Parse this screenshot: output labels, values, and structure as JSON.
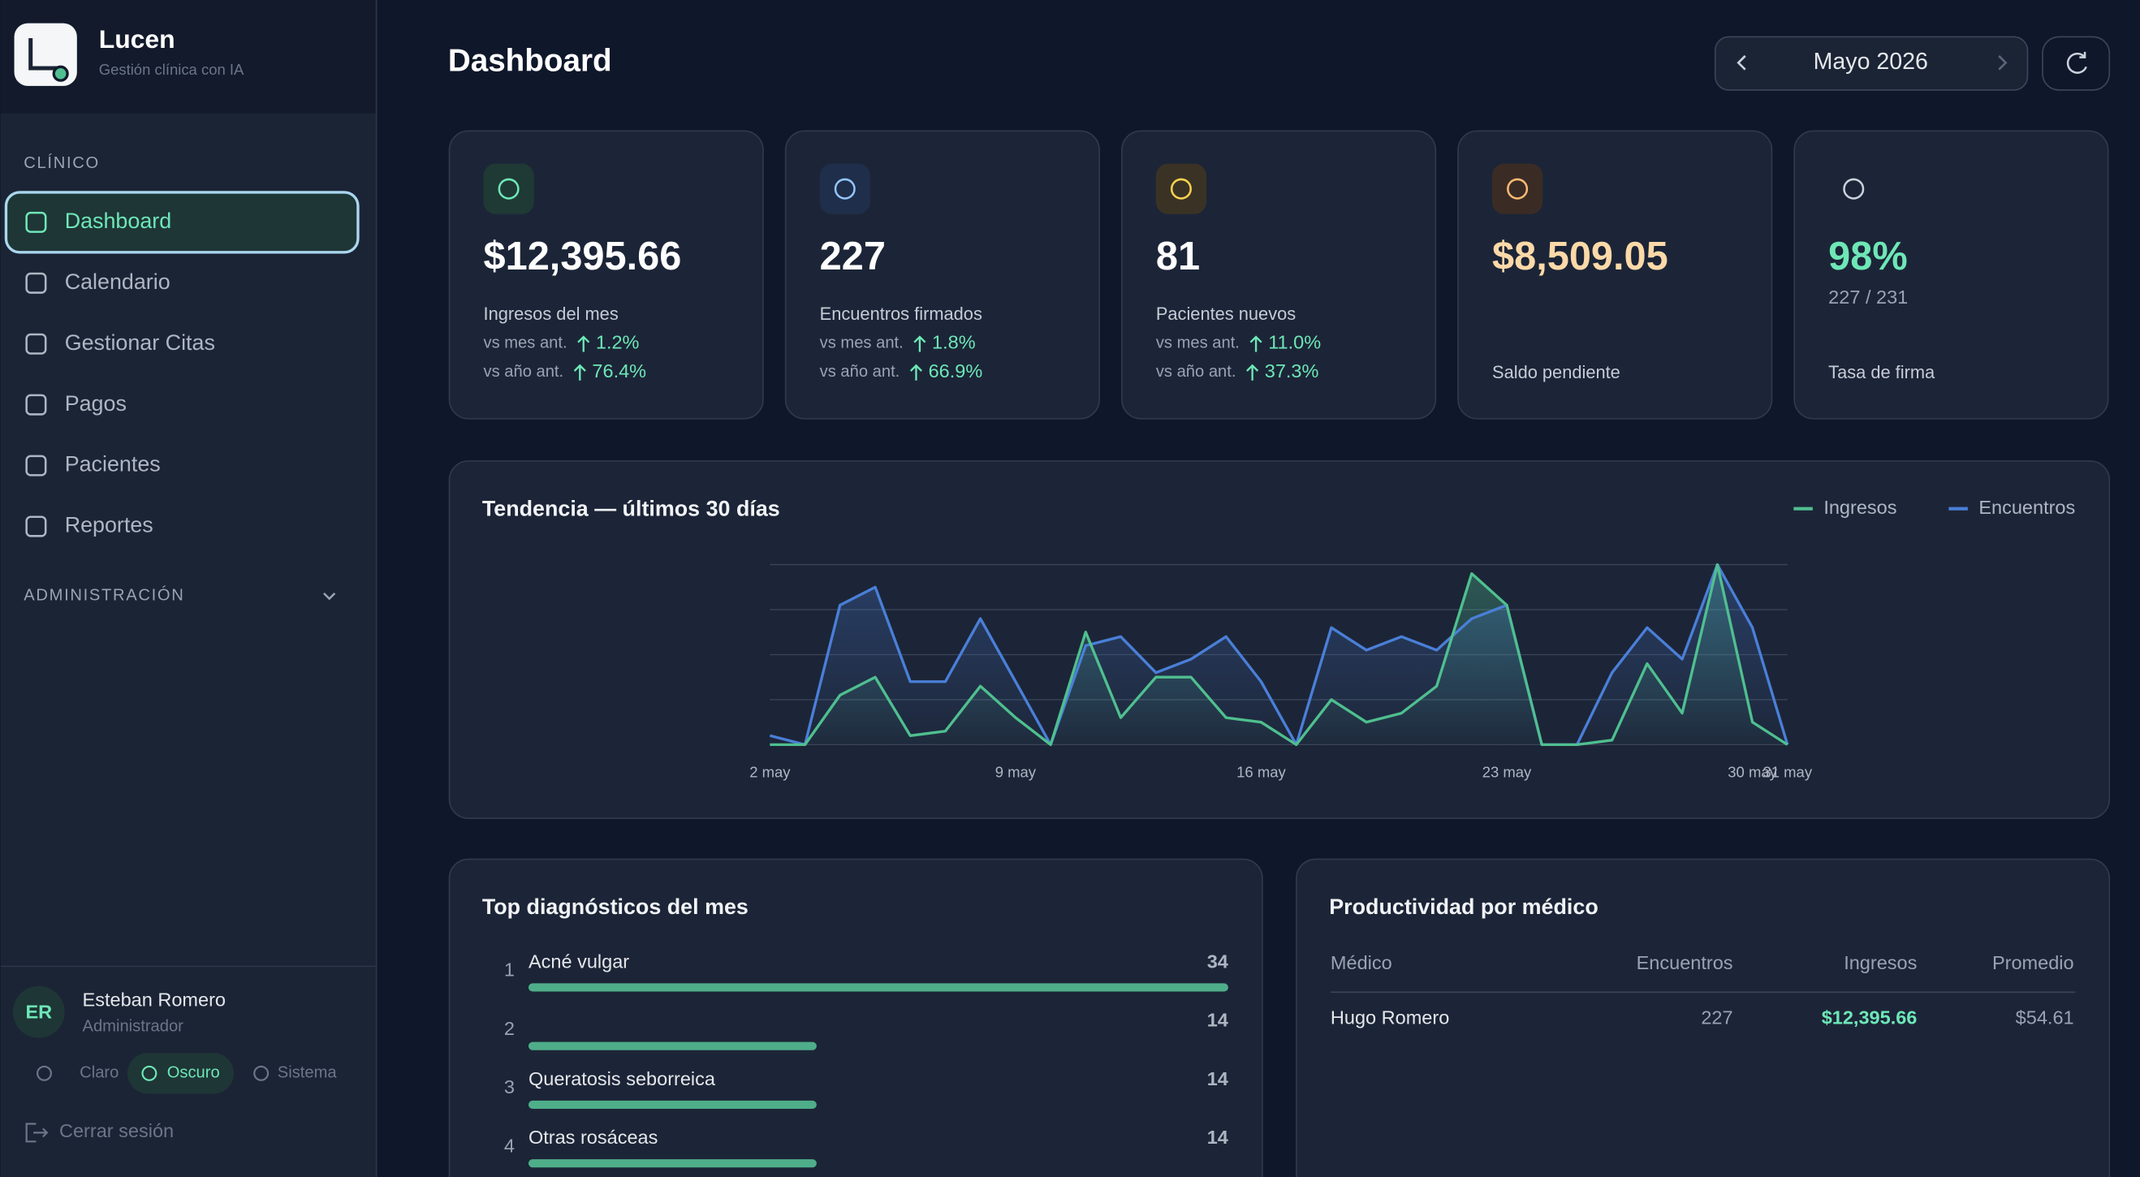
{
  "sidebar": {
    "brand": "Lucen",
    "tagline": "Gestión clínica con IA",
    "sections": [
      {
        "title": "CLÍNICO",
        "items": [
          "Dashboard",
          "Calendario",
          "Gestionar Citas",
          "Pagos",
          "Pacientes",
          "Reportes"
        ]
      },
      {
        "title": "ADMINISTRACIÓN"
      }
    ],
    "user": {
      "initials": "ER",
      "name": "Esteban Romero",
      "role": "Administrador"
    },
    "themes": [
      "Claro",
      "Oscuro",
      "Sistema"
    ],
    "logout": "Cerrar sesión"
  },
  "header": {
    "title": "Dashboard",
    "month": "Mayo 2026"
  },
  "kpis": [
    {
      "value": "$12,395.66",
      "label": "Ingresos del mes",
      "comparisons": [
        {
          "label": "vs mes ant.",
          "change": "1.2%"
        },
        {
          "label": "vs año ant.",
          "change": "76.4%"
        }
      ]
    },
    {
      "value": "227",
      "label": "Encuentros firmados",
      "comparisons": [
        {
          "label": "vs mes ant.",
          "change": "1.8%"
        },
        {
          "label": "vs año ant.",
          "change": "66.9%"
        }
      ]
    },
    {
      "value": "81",
      "label": "Pacientes nuevos",
      "comparisons": [
        {
          "label": "vs mes ant.",
          "change": "11.0%"
        },
        {
          "label": "vs año ant.",
          "change": "37.3%"
        }
      ]
    },
    {
      "value": "$8,509.05",
      "label": "Saldo pendiente"
    },
    {
      "value": "98%",
      "detail": "227 / 231",
      "label": "Tasa de firma"
    }
  ],
  "chart_data": {
    "type": "line",
    "title": "Tendencia — últimos 30 días",
    "categories": [
      "2 may",
      null,
      null,
      null,
      null,
      null,
      null,
      "9 may",
      null,
      null,
      null,
      null,
      null,
      null,
      "16 may",
      null,
      null,
      null,
      null,
      null,
      null,
      "23 may",
      null,
      null,
      null,
      null,
      null,
      null,
      "30 may",
      "31 may"
    ],
    "series": [
      {
        "name": "Ingresos",
        "color": "#4fbf8f",
        "values": [
          0,
          0,
          1.1,
          1.5,
          0.2,
          0.3,
          1.3,
          0.6,
          0,
          2.5,
          0.6,
          1.5,
          1.5,
          0.6,
          0.5,
          0,
          1.0,
          0.5,
          0.7,
          1.3,
          3.8,
          3.1,
          0,
          0,
          0.1,
          1.8,
          0.7,
          4.0,
          0.5,
          0
        ]
      },
      {
        "name": "Encuentros",
        "color": "#4a7fd8",
        "values": [
          0.2,
          0,
          3.1,
          3.5,
          1.4,
          1.4,
          2.8,
          1.4,
          0,
          2.2,
          2.4,
          1.6,
          1.9,
          2.4,
          1.4,
          0,
          2.6,
          2.1,
          2.4,
          2.1,
          2.8,
          3.1,
          0,
          0,
          1.6,
          2.6,
          1.9,
          4.0,
          2.6,
          0
        ]
      }
    ],
    "ylim": [
      0,
      4
    ],
    "yticks": [
      0,
      1,
      2,
      3,
      4
    ],
    "grid": true,
    "legend": "top-right"
  },
  "diagnoses": {
    "title": "Top diagnósticos del mes",
    "items": [
      {
        "rank": 1,
        "name": "Acné vulgar",
        "count": 34
      },
      {
        "rank": 2,
        "count": 14
      },
      {
        "rank": 3,
        "name": "Queratosis seborreica",
        "count": 14
      },
      {
        "rank": 4,
        "name": "Otras rosáceas",
        "count": 14
      }
    ]
  },
  "productivity": {
    "title": "Productividad por médico",
    "columns": [
      "Médico",
      "Encuentros",
      "Ingresos",
      "Promedio"
    ],
    "rows": [
      [
        "Hugo Romero",
        "227",
        "$12,395.66",
        "$54.61"
      ]
    ]
  }
}
